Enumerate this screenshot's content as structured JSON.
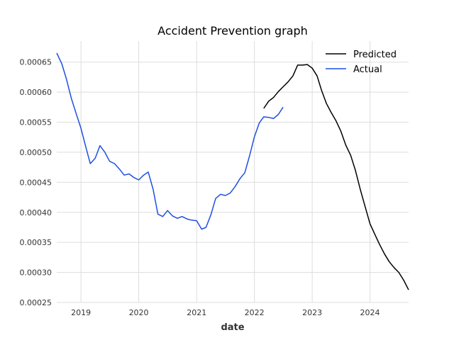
{
  "chart_data": {
    "type": "line",
    "title": "Accident Prevention graph",
    "xlabel": "date",
    "ylabel": "",
    "ylim": [
      0.00025,
      0.000685
    ],
    "xlim": [
      "2018-08-01",
      "2024-09-01"
    ],
    "grid": true,
    "legend_position": "top-right",
    "x_ticks": [
      "2019",
      "2020",
      "2021",
      "2022",
      "2023",
      "2024"
    ],
    "y_ticks": [
      "0.00025",
      "0.00030",
      "0.00035",
      "0.00040",
      "0.00045",
      "0.00050",
      "0.00055",
      "0.00060",
      "0.00065"
    ],
    "y_tick_values": [
      0.00025,
      0.0003,
      0.00035,
      0.0004,
      0.00045,
      0.0005,
      0.00055,
      0.0006,
      0.00065
    ],
    "x_tick_dates": [
      "2019-01-01",
      "2020-01-01",
      "2021-01-01",
      "2022-01-01",
      "2023-01-01",
      "2024-01-01"
    ],
    "series": [
      {
        "name": "Predicted",
        "color": "#000000",
        "x": [
          "2022-03-01",
          "2022-04-01",
          "2022-05-01",
          "2022-06-01",
          "2022-07-01",
          "2022-08-01",
          "2022-09-01",
          "2022-10-01",
          "2022-11-01",
          "2022-12-01",
          "2023-01-01",
          "2023-02-01",
          "2023-03-01",
          "2023-04-01",
          "2023-05-01",
          "2023-06-01",
          "2023-07-01",
          "2023-08-01",
          "2023-09-01",
          "2023-10-01",
          "2023-11-01",
          "2023-12-01",
          "2024-01-01",
          "2024-02-01",
          "2024-03-01",
          "2024-04-01",
          "2024-05-01",
          "2024-06-01",
          "2024-07-01",
          "2024-08-01",
          "2024-09-01"
        ],
        "y": [
          0.000573,
          0.000585,
          0.000591,
          0.000601,
          0.000609,
          0.000617,
          0.000627,
          0.000645,
          0.000645,
          0.000646,
          0.00064,
          0.000627,
          0.000603,
          0.000581,
          0.000566,
          0.000552,
          0.000535,
          0.000512,
          0.000495,
          0.00047,
          0.000438,
          0.00041,
          0.000381,
          0.000363,
          0.000347,
          0.000331,
          0.000318,
          0.000308,
          0.0003,
          0.000287,
          0.000271
        ]
      },
      {
        "name": "Actual",
        "color": "#1f4fe0",
        "x": [
          "2018-08-01",
          "2018-09-01",
          "2018-10-01",
          "2018-11-01",
          "2018-12-01",
          "2019-01-01",
          "2019-02-01",
          "2019-03-01",
          "2019-04-01",
          "2019-05-01",
          "2019-06-01",
          "2019-07-01",
          "2019-08-01",
          "2019-09-01",
          "2019-10-01",
          "2019-11-01",
          "2019-12-01",
          "2020-01-01",
          "2020-02-01",
          "2020-03-01",
          "2020-04-01",
          "2020-05-01",
          "2020-06-01",
          "2020-07-01",
          "2020-08-01",
          "2020-09-01",
          "2020-10-01",
          "2020-11-01",
          "2020-12-01",
          "2021-01-01",
          "2021-02-01",
          "2021-03-01",
          "2021-04-01",
          "2021-05-01",
          "2021-06-01",
          "2021-07-01",
          "2021-08-01",
          "2021-09-01",
          "2021-10-01",
          "2021-11-01",
          "2021-12-01",
          "2022-01-01",
          "2022-02-01",
          "2022-03-01",
          "2022-04-01",
          "2022-05-01",
          "2022-06-01",
          "2022-07-01"
        ],
        "y": [
          0.000665,
          0.000648,
          0.000622,
          0.00059,
          0.000565,
          0.00054,
          0.000508,
          0.000481,
          0.00049,
          0.000511,
          0.0005,
          0.000485,
          0.000481,
          0.000472,
          0.000462,
          0.000464,
          0.000458,
          0.000454,
          0.000462,
          0.000467,
          0.000438,
          0.000397,
          0.000393,
          0.000403,
          0.000394,
          0.00039,
          0.000393,
          0.000389,
          0.000387,
          0.000386,
          0.000372,
          0.000375,
          0.000396,
          0.000423,
          0.00043,
          0.000428,
          0.000432,
          0.000443,
          0.000456,
          0.000466,
          0.000494,
          0.000526,
          0.000549,
          0.000559,
          0.000558,
          0.000556,
          0.000563,
          0.000575
        ]
      }
    ]
  }
}
